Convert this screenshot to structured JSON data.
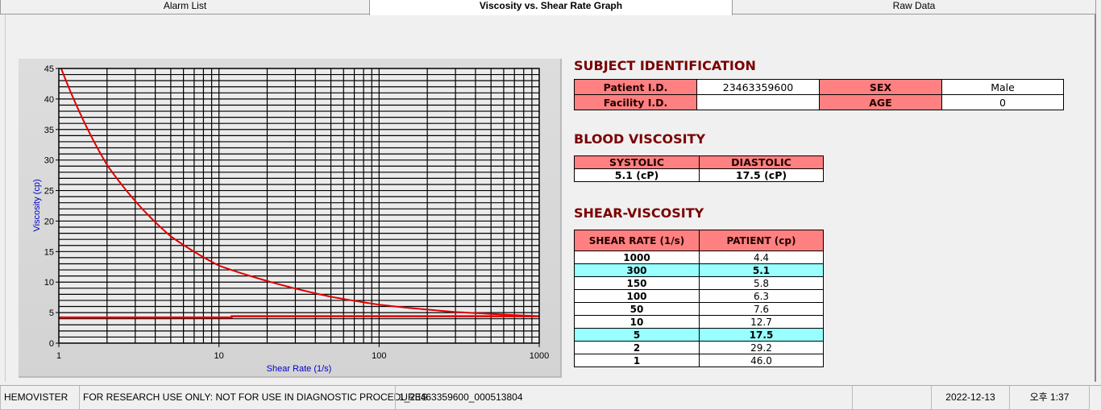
{
  "tabs": [
    {
      "label": "Alarm List"
    },
    {
      "label": "Viscosity vs. Shear Rate Graph",
      "active": true
    },
    {
      "label": "Raw Data"
    }
  ],
  "subject": {
    "title": "SUBJECT IDENTIFICATION",
    "patient_id_label": "Patient I.D.",
    "patient_id": "23463359600",
    "sex_label": "SEX",
    "sex": "Male",
    "facility_id_label": "Facility I.D.",
    "facility_id": "",
    "age_label": "AGE",
    "age": "0"
  },
  "blood": {
    "title": "BLOOD VISCOSITY",
    "systolic_label": "SYSTOLIC",
    "diastolic_label": "DIASTOLIC",
    "systolic": "5.1 (cP)",
    "diastolic": "17.5 (cP)"
  },
  "shear": {
    "title": "SHEAR-VISCOSITY",
    "col1": "SHEAR RATE (1/s)",
    "col2": "PATIENT (cp)",
    "rows": [
      {
        "rate": "1000",
        "value": "4.4"
      },
      {
        "rate": "300",
        "value": "5.1",
        "highlight": true
      },
      {
        "rate": "150",
        "value": "5.8"
      },
      {
        "rate": "100",
        "value": "6.3"
      },
      {
        "rate": "50",
        "value": "7.6"
      },
      {
        "rate": "10",
        "value": "12.7"
      },
      {
        "rate": "5",
        "value": "17.5",
        "highlight": true
      },
      {
        "rate": "2",
        "value": "29.2"
      },
      {
        "rate": "1",
        "value": "46.0"
      }
    ]
  },
  "colors": {
    "header": "#ff8080",
    "highlight": "#99ffff",
    "title": "#7a0000",
    "curve": "#e00000",
    "axis_label": "#0000cc"
  },
  "chart_data": {
    "type": "line",
    "xlabel": "Shear Rate (1/s)",
    "ylabel": "Viscosity (cp)",
    "xscale": "log",
    "xlim": [
      1,
      1000
    ],
    "ylim": [
      0,
      45
    ],
    "grid": true,
    "xticks": [
      "1",
      "10",
      "100",
      "1000"
    ],
    "yticks": [
      "0",
      "5",
      "10",
      "15",
      "20",
      "25",
      "30",
      "35",
      "40",
      "45"
    ],
    "series": [
      {
        "x": [
          1,
          2,
          5,
          10,
          50,
          100,
          150,
          300,
          1000
        ],
        "y": [
          46.0,
          29.2,
          17.5,
          12.7,
          7.6,
          6.3,
          5.8,
          5.1,
          4.4
        ]
      },
      {
        "x": [
          1,
          12,
          12,
          1000
        ],
        "y": [
          4.2,
          4.2,
          4.4,
          4.4
        ]
      }
    ]
  },
  "status": {
    "app": "HEMOVISTER",
    "notice": "FOR RESEARCH USE ONLY: NOT FOR USE IN DIAGNOSTIC PROCEDURES",
    "record": "1_23463359600_000513804",
    "blank": "",
    "date": "2022-12-13",
    "time": "오후 1:37"
  }
}
